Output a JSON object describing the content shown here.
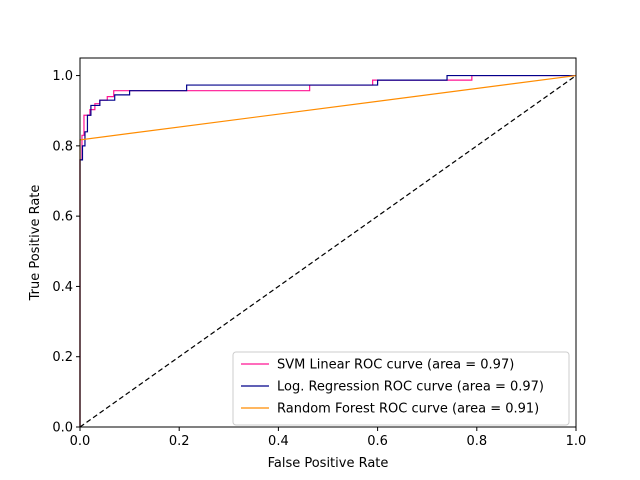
{
  "chart_data": {
    "type": "line",
    "title": "",
    "xlabel": "False Positive Rate",
    "ylabel": "True Positive Rate",
    "xlim": [
      0.0,
      1.0
    ],
    "ylim": [
      0.0,
      1.05
    ],
    "xticks": [
      0.0,
      0.2,
      0.4,
      0.6,
      0.8,
      1.0
    ],
    "yticks": [
      0.0,
      0.2,
      0.4,
      0.6,
      0.8,
      1.0
    ],
    "xtick_labels": [
      "0.0",
      "0.2",
      "0.4",
      "0.6",
      "0.8",
      "1.0"
    ],
    "ytick_labels": [
      "0.0",
      "0.2",
      "0.4",
      "0.6",
      "0.8",
      "1.0"
    ],
    "grid": false,
    "legend_position": "lower-right",
    "series": [
      {
        "name": "SVM Linear ROC curve (area = 0.97)",
        "color": "#ff1493",
        "style": "solid",
        "x": [
          0.0,
          0.0,
          0.004,
          0.004,
          0.008,
          0.008,
          0.02,
          0.02,
          0.03,
          0.03,
          0.04,
          0.04,
          0.055,
          0.055,
          0.068,
          0.068,
          0.21,
          0.21,
          0.463,
          0.463,
          0.59,
          0.59,
          0.74,
          0.74,
          0.79,
          0.79,
          1.0
        ],
        "y": [
          0.0,
          0.76,
          0.76,
          0.83,
          0.83,
          0.887,
          0.887,
          0.903,
          0.903,
          0.92,
          0.92,
          0.93,
          0.93,
          0.94,
          0.94,
          0.957,
          0.957,
          0.957,
          0.957,
          0.973,
          0.973,
          0.987,
          0.987,
          0.987,
          0.987,
          1.0,
          1.0
        ]
      },
      {
        "name": "Log. Regression ROC curve (area = 0.97)",
        "color": "#00008b",
        "style": "solid",
        "x": [
          0.0,
          0.0,
          0.005,
          0.005,
          0.01,
          0.01,
          0.015,
          0.015,
          0.022,
          0.022,
          0.04,
          0.04,
          0.07,
          0.07,
          0.1,
          0.1,
          0.215,
          0.215,
          0.6,
          0.6,
          0.74,
          0.74,
          1.0
        ],
        "y": [
          0.0,
          0.76,
          0.76,
          0.8,
          0.8,
          0.84,
          0.84,
          0.887,
          0.887,
          0.915,
          0.915,
          0.93,
          0.93,
          0.945,
          0.945,
          0.957,
          0.957,
          0.973,
          0.973,
          0.987,
          0.987,
          1.0,
          1.0
        ]
      },
      {
        "name": "Random Forest ROC curve (area = 0.91)",
        "color": "#ff8c00",
        "style": "solid",
        "x": [
          0.0,
          0.0,
          1.0
        ],
        "y": [
          0.0,
          0.817,
          1.0
        ]
      },
      {
        "name": "",
        "color": "#000000",
        "style": "dashed",
        "x": [
          0.0,
          1.0
        ],
        "y": [
          0.0,
          1.0
        ]
      }
    ]
  }
}
